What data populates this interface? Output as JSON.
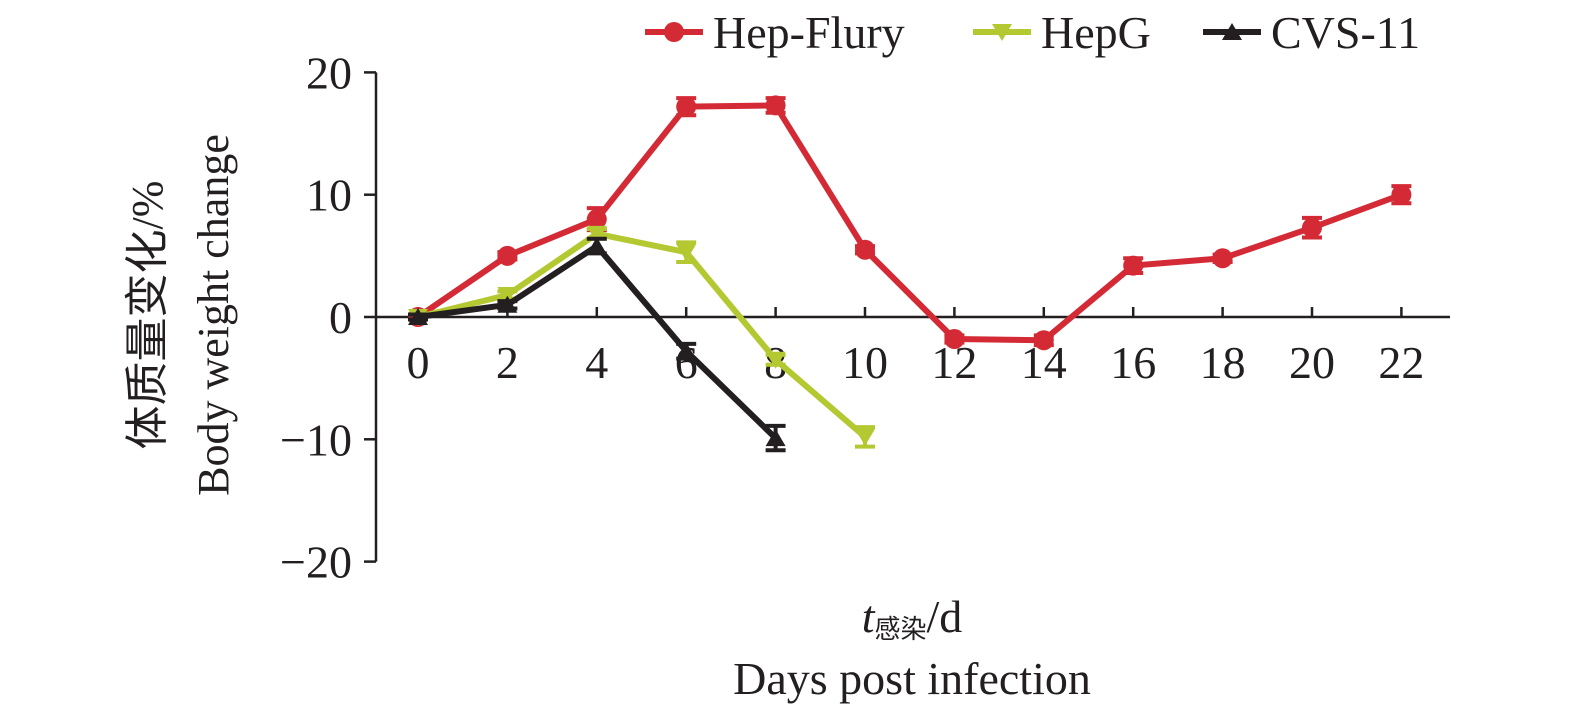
{
  "chart_data": {
    "type": "line",
    "ylabel_cn": "体质量变化/%",
    "ylabel_en": "Body weight change",
    "xlabel_main": "t",
    "xlabel_sub": "感染",
    "xlabel_unit": "/d",
    "xlabel_en": "Days post infection",
    "ylim": [
      -20,
      20
    ],
    "yticks": [
      "20",
      "10",
      "0",
      "−10",
      "−20"
    ],
    "ytick_values": [
      20,
      10,
      0,
      -10,
      -20
    ],
    "xticks": [
      "0",
      "2",
      "4",
      "6",
      "8",
      "10",
      "12",
      "14",
      "16",
      "18",
      "20",
      "22"
    ],
    "xtick_values": [
      0,
      2,
      4,
      6,
      8,
      10,
      12,
      14,
      16,
      18,
      20,
      22
    ],
    "legend_position": "top-right",
    "grid": false,
    "series": [
      {
        "name": "Hep-Flury",
        "color": "#d42a35",
        "marker": "circle",
        "x": [
          0,
          2,
          4,
          6,
          8,
          10,
          12,
          14,
          16,
          18,
          20,
          22
        ],
        "y": [
          0,
          5,
          8,
          17.2,
          17.3,
          5.5,
          -1.8,
          -1.9,
          4.2,
          4.8,
          7.3,
          10
        ],
        "err": [
          0.2,
          0.3,
          0.9,
          0.7,
          0.6,
          0.3,
          0.3,
          0.4,
          0.6,
          0.3,
          0.8,
          0.7
        ]
      },
      {
        "name": "HepG",
        "color": "#b4c832",
        "marker": "triangle-down",
        "x": [
          0,
          2,
          4,
          6,
          8,
          10
        ],
        "y": [
          0,
          1.8,
          6.8,
          5.3,
          -3.5,
          -9.8
        ],
        "err": [
          0.2,
          0.3,
          0.4,
          0.8,
          0.4,
          0.8
        ]
      },
      {
        "name": "CVS-11",
        "color": "#231f20",
        "marker": "triangle-up",
        "x": [
          0,
          2,
          4,
          6,
          8
        ],
        "y": [
          0,
          1,
          5.8,
          -2.8,
          -9.9
        ],
        "err": [
          0.2,
          0.3,
          0.6,
          0.6,
          1.0
        ]
      }
    ]
  }
}
